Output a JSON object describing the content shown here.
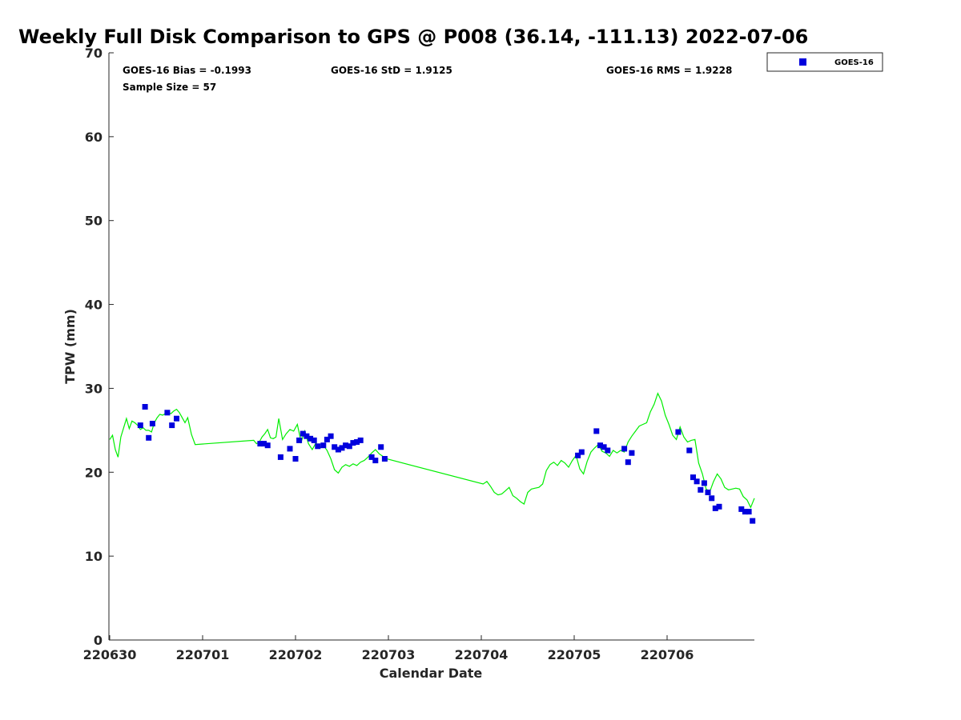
{
  "chart_data": {
    "type": "scatter",
    "title": "Weekly Full Disk Comparison to GPS @ P008 (36.14, -111.13) 2022-07-06",
    "xlabel": "Calendar Date",
    "ylabel": "TPW (mm)",
    "xlim": [
      220630,
      220706.95
    ],
    "ylim": [
      0,
      70
    ],
    "x_ticks": [
      "220630",
      "220701",
      "220702",
      "220703",
      "220704",
      "220705",
      "220706"
    ],
    "y_ticks": [
      "0",
      "10",
      "20",
      "30",
      "40",
      "50",
      "60",
      "70"
    ],
    "legend_position": "top-right-outside",
    "stats": {
      "bias": "GOES-16 Bias = -0.1993",
      "std": "GOES-16 StD = 1.9125",
      "rms": "GOES-16 RMS = 1.9228",
      "sample_size": "Sample Size = 57"
    },
    "colors": {
      "goes": "#0000dd",
      "gps": "#00ee00",
      "axis": "#262626"
    },
    "series": [
      {
        "name": "GOES-16",
        "marker": "square",
        "x": [
          220630.33,
          220630.38,
          220630.42,
          220630.46,
          220630.62,
          220630.67,
          220630.72,
          220701.62,
          220701.66,
          220701.7,
          220701.84,
          220701.94,
          220702.0,
          220702.04,
          220702.08,
          220702.12,
          220702.16,
          220702.2,
          220702.24,
          220702.3,
          220702.34,
          220702.38,
          220702.42,
          220702.46,
          220702.5,
          220702.54,
          220702.58,
          220702.62,
          220702.66,
          220702.7,
          220702.82,
          220702.86,
          220702.92,
          220702.96,
          220705.04,
          220705.08,
          220705.24,
          220705.28,
          220705.32,
          220705.36,
          220705.54,
          220705.58,
          220705.62,
          220706.12,
          220706.24,
          220706.28,
          220706.32,
          220706.36,
          220706.4,
          220706.44,
          220706.48,
          220706.52,
          220706.56,
          220706.8,
          220706.84,
          220706.88,
          220706.92
        ],
        "values": [
          25.6,
          27.8,
          24.1,
          25.8,
          27.1,
          25.6,
          26.4,
          23.4,
          23.4,
          23.2,
          21.8,
          22.8,
          21.6,
          23.8,
          24.6,
          24.3,
          24.0,
          23.8,
          23.1,
          23.2,
          23.9,
          24.3,
          23.0,
          22.7,
          22.9,
          23.2,
          23.1,
          23.5,
          23.6,
          23.8,
          21.8,
          21.4,
          23.0,
          21.6,
          22.0,
          22.4,
          24.9,
          23.2,
          23.0,
          22.6,
          22.8,
          21.2,
          22.3,
          24.8,
          22.6,
          19.4,
          18.9,
          17.9,
          18.7,
          17.6,
          16.9,
          15.7,
          15.9,
          15.6,
          15.3,
          15.3,
          14.2
        ]
      },
      {
        "name": "",
        "marker": "line",
        "x": [
          220630.0,
          220630.03,
          220630.06,
          220630.09,
          220630.12,
          220630.15,
          220630.18,
          220630.21,
          220630.24,
          220630.27,
          220630.3,
          220630.33,
          220630.36,
          220630.39,
          220630.42,
          220630.45,
          220630.48,
          220630.51,
          220630.54,
          220630.57,
          220630.6,
          220630.63,
          220630.66,
          220630.69,
          220630.72,
          220630.75,
          220630.78,
          220630.81,
          220630.84,
          220630.88,
          220630.92,
          220701.55,
          220701.58,
          220701.61,
          220701.64,
          220701.67,
          220701.7,
          220701.73,
          220701.76,
          220701.79,
          220701.82,
          220701.86,
          220701.9,
          220701.94,
          220701.98,
          220702.02,
          220702.06,
          220702.1,
          220702.14,
          220702.18,
          220702.22,
          220702.26,
          220702.3,
          220702.34,
          220702.38,
          220702.42,
          220702.46,
          220702.5,
          220702.54,
          220702.58,
          220702.62,
          220702.66,
          220702.7,
          220702.74,
          220702.78,
          220702.82,
          220702.86,
          220702.9,
          220702.94,
          220702.98,
          220704.02,
          220704.06,
          220704.1,
          220704.14,
          220704.18,
          220704.22,
          220704.26,
          220704.3,
          220704.34,
          220704.38,
          220704.42,
          220704.46,
          220704.5,
          220704.54,
          220704.58,
          220704.62,
          220704.66,
          220704.7,
          220704.74,
          220704.78,
          220704.82,
          220704.86,
          220704.9,
          220704.94,
          220704.98,
          220705.02,
          220705.06,
          220705.1,
          220705.14,
          220705.18,
          220705.22,
          220705.26,
          220705.3,
          220705.34,
          220705.38,
          220705.42,
          220705.46,
          220705.5,
          220705.54,
          220705.58,
          220705.62,
          220705.66,
          220705.7,
          220705.74,
          220705.78,
          220705.82,
          220705.86,
          220705.9,
          220705.94,
          220705.98,
          220706.02,
          220706.06,
          220706.1,
          220706.14,
          220706.18,
          220706.22,
          220706.26,
          220706.3,
          220706.34,
          220706.38,
          220706.42,
          220706.46,
          220706.5,
          220706.54,
          220706.58,
          220706.62,
          220706.66,
          220706.7,
          220706.74,
          220706.78,
          220706.82,
          220706.86,
          220706.9,
          220706.94
        ],
        "values": [
          23.9,
          24.4,
          22.7,
          21.8,
          24.2,
          25.3,
          26.4,
          25.2,
          26.1,
          25.9,
          25.6,
          25.1,
          25.3,
          25.0,
          25.0,
          24.8,
          25.9,
          26.5,
          26.9,
          26.8,
          27.0,
          27.1,
          27.0,
          27.3,
          27.5,
          27.1,
          26.5,
          25.9,
          26.5,
          24.5,
          23.3,
          23.8,
          23.4,
          23.6,
          24.2,
          24.6,
          25.1,
          24.1,
          24.0,
          24.2,
          26.4,
          23.9,
          24.6,
          25.1,
          24.9,
          25.7,
          23.6,
          24.9,
          23.4,
          22.7,
          23.5,
          22.9,
          23.2,
          22.6,
          21.6,
          20.3,
          19.9,
          20.6,
          20.9,
          20.7,
          21.0,
          20.8,
          21.2,
          21.4,
          21.8,
          22.3,
          22.7,
          22.2,
          21.9,
          21.6,
          18.6,
          18.9,
          18.3,
          17.6,
          17.3,
          17.4,
          17.8,
          18.2,
          17.2,
          16.9,
          16.5,
          16.2,
          17.6,
          18.0,
          18.1,
          18.2,
          18.6,
          20.2,
          20.9,
          21.2,
          20.8,
          21.4,
          21.1,
          20.6,
          21.4,
          22.0,
          20.4,
          19.8,
          21.3,
          22.4,
          22.9,
          23.3,
          22.5,
          22.3,
          21.9,
          22.6,
          22.3,
          22.6,
          22.4,
          23.6,
          24.3,
          24.9,
          25.5,
          25.7,
          25.9,
          27.2,
          28.1,
          29.4,
          28.5,
          26.8,
          25.7,
          24.4,
          23.9,
          25.4,
          24.2,
          23.6,
          23.8,
          23.9,
          21.1,
          19.8,
          18.0,
          17.7,
          18.9,
          19.8,
          19.2,
          18.2,
          17.9,
          18.0,
          18.1,
          18.0,
          17.1,
          16.7,
          15.8,
          16.9
        ]
      }
    ]
  }
}
